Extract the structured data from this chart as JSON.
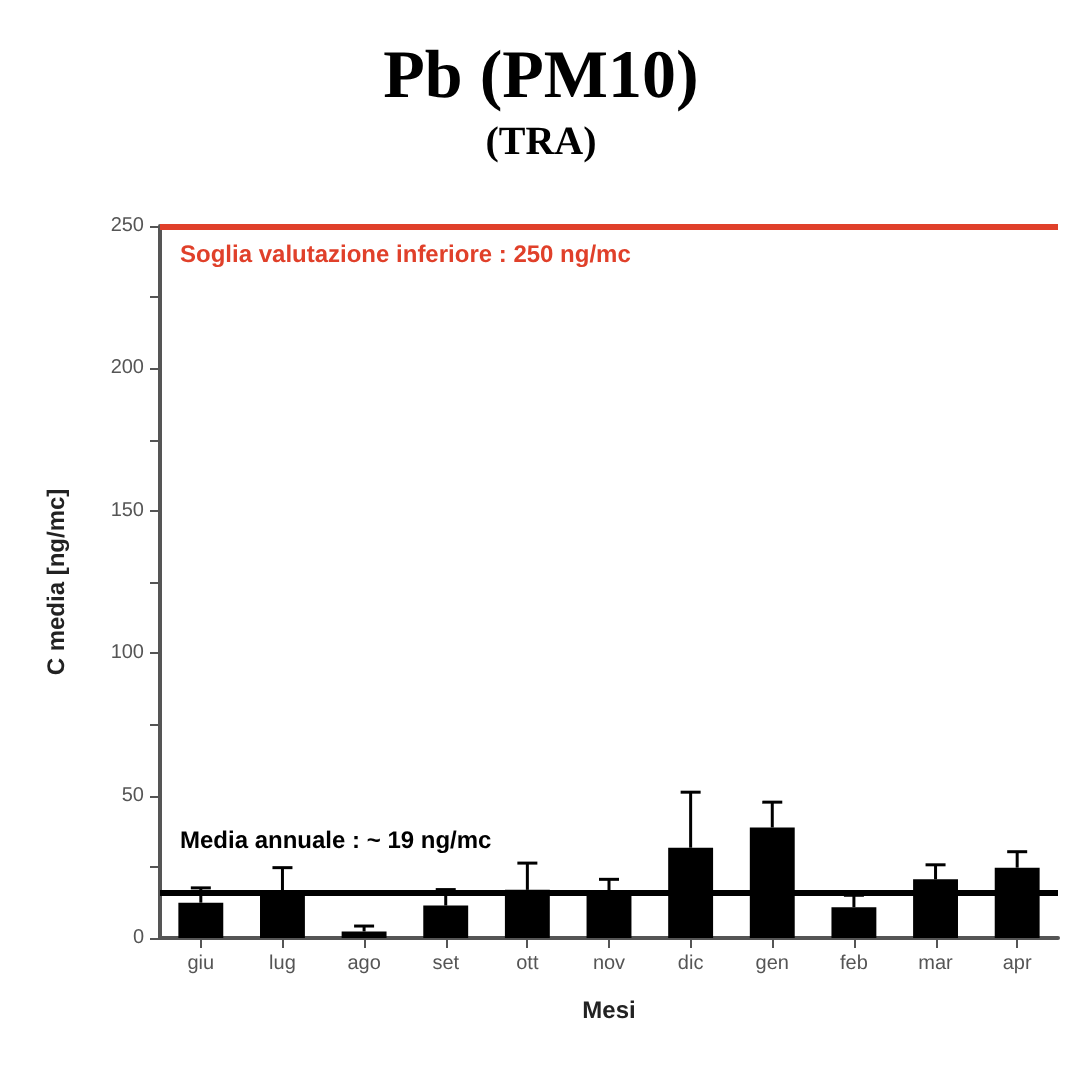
{
  "chart_data": {
    "type": "bar",
    "title": "Pb (PM10)",
    "subtitle": "(TRA)",
    "xlabel": "Mesi",
    "ylabel": "C media [ng/mc]",
    "categories": [
      "giu",
      "lug",
      "ago",
      "set",
      "ott",
      "nov",
      "dic",
      "gen",
      "feb",
      "mar",
      "apr"
    ],
    "values": [
      12.4,
      16,
      2.3,
      11.4,
      16.9,
      15.7,
      31.7,
      38.8,
      10.8,
      20.6,
      24.7
    ],
    "errors": [
      [
        12.4,
        17.6
      ],
      [
        16,
        24.7
      ],
      [
        2.3,
        4.2
      ],
      [
        11.4,
        17
      ],
      [
        16.9,
        26.3
      ],
      [
        15.7,
        20.6
      ],
      [
        31.7,
        51.2
      ],
      [
        38.8,
        47.7
      ],
      [
        10.8,
        15
      ],
      [
        20.6,
        25.7
      ],
      [
        24.7,
        30.3
      ]
    ],
    "color": "#000000",
    "ylim": [
      0,
      250
    ],
    "yticks": [
      0,
      {
        "value": 25,
        "label": null
      },
      50,
      {
        "value": 75,
        "label": null
      },
      100,
      {
        "value": 125,
        "label": null
      },
      150,
      {
        "value": 175,
        "label": null
      },
      200,
      {
        "value": 225,
        "label": null
      },
      250
    ],
    "ref_lines": [
      {
        "axis": "y",
        "value": 250,
        "label": "Soglia valutazione inferiore : 250 ng/mc",
        "color": "#e0402a"
      },
      {
        "axis": "y",
        "value": 16,
        "label": "Media annuale : ~ 19 ng/mc",
        "color": "#000000"
      }
    ],
    "grid": false
  }
}
